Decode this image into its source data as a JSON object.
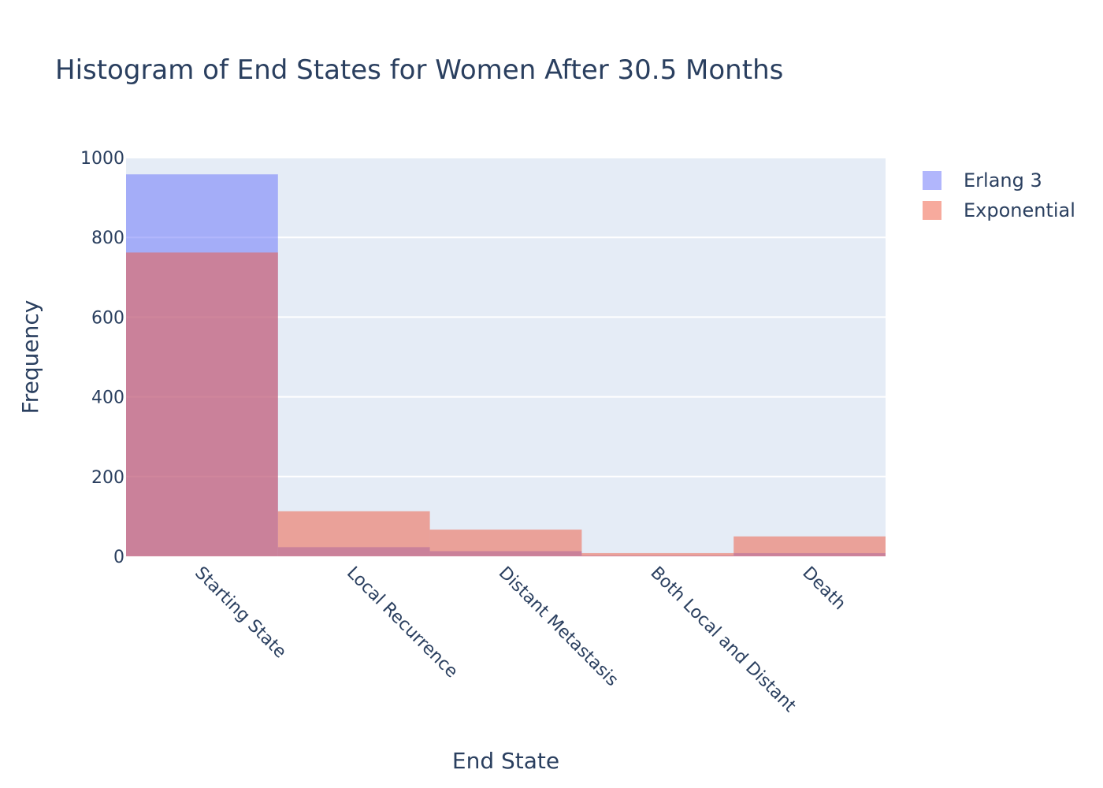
{
  "chart_data": {
    "type": "bar",
    "title": "Histogram of End States for Women After 30.5 Months",
    "xlabel": "End State",
    "ylabel": "Frequency",
    "categories": [
      "Starting State",
      "Local Recurrence",
      "Distant Metastasis",
      "Both Local and Distant",
      "Death"
    ],
    "ylim": [
      0,
      1000
    ],
    "yticks": [
      0,
      200,
      400,
      600,
      800,
      1000
    ],
    "barmode": "overlay",
    "grid": true,
    "legend_position": "top-right",
    "series": [
      {
        "name": "Erlang 3",
        "color": "#636efa",
        "values": [
          958,
          23,
          13,
          2,
          8
        ]
      },
      {
        "name": "Exponential",
        "color": "#ef553b",
        "values": [
          762,
          113,
          67,
          8,
          50
        ]
      }
    ]
  }
}
